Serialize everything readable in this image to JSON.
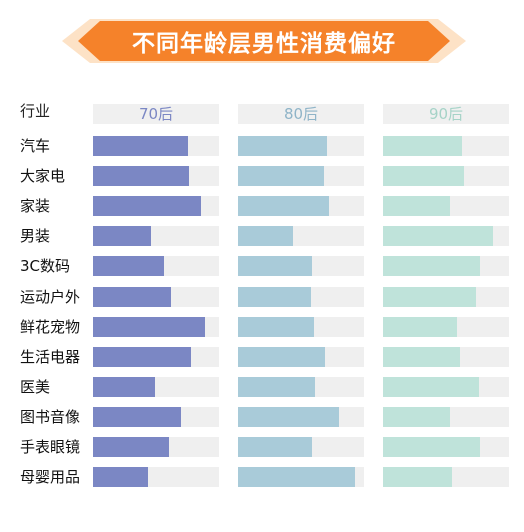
{
  "title": "不同年龄层男性消费偏好",
  "colors": {
    "banner_main": "#f5822a",
    "banner_dark": "#e8651b",
    "banner_light": "#fde2c6",
    "track": "#efefef"
  },
  "chart_data": {
    "type": "bar",
    "row_header": "行业",
    "categories": [
      "汽车",
      "大家电",
      "家装",
      "男装",
      "3C数码",
      "运动户外",
      "鲜花宠物",
      "生活电器",
      "医美",
      "图书音像",
      "手表眼镜",
      "母婴用品"
    ],
    "xlim": [
      0,
      100
    ],
    "series": [
      {
        "name": "70后",
        "color": "#7b87c4",
        "header_color": "#7b87c4",
        "values": [
          75,
          76,
          86,
          46,
          56,
          62,
          89,
          78,
          49,
          70,
          60,
          44
        ]
      },
      {
        "name": "80后",
        "color": "#a9cbd9",
        "header_color": "#8fb4c8",
        "values": [
          71,
          68,
          72,
          44,
          59,
          58,
          60,
          69,
          61,
          80,
          59,
          93
        ]
      },
      {
        "name": "90后",
        "color": "#bfe3da",
        "header_color": "#a6d3c8",
        "values": [
          63,
          64,
          53,
          87,
          77,
          74,
          59,
          61,
          76,
          53,
          77,
          55
        ]
      }
    ]
  }
}
